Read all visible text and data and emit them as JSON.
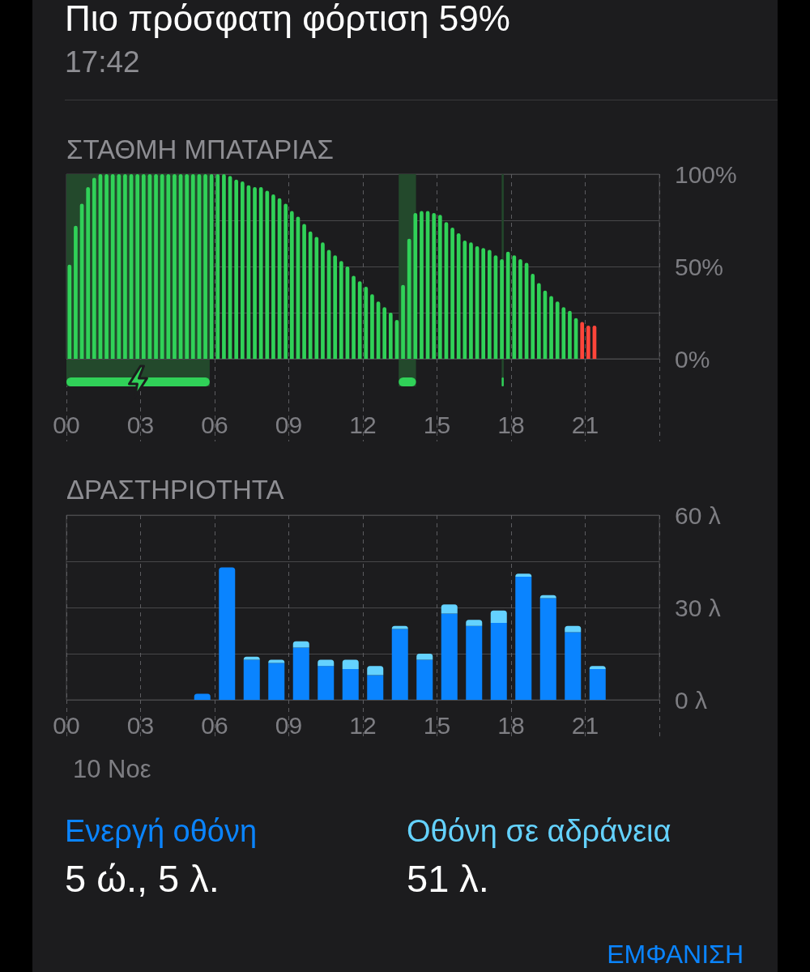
{
  "chart_data": [
    {
      "type": "bar",
      "title": "ΣΤΑΘΜΗ ΜΠΑΤΑΡΙΑΣ",
      "annotations": [
        "Πιο πρόσφατη φόρτιση 59%",
        "17:42"
      ],
      "x": [
        0.125,
        0.375,
        0.625,
        0.875,
        1.125,
        1.375,
        1.625,
        1.875,
        2.125,
        2.375,
        2.625,
        2.875,
        3.125,
        3.375,
        3.625,
        3.875,
        4.125,
        4.375,
        4.625,
        4.875,
        5.125,
        5.375,
        5.625,
        5.875,
        6.125,
        6.375,
        6.625,
        6.875,
        7.125,
        7.375,
        7.625,
        7.875,
        8.125,
        8.375,
        8.625,
        8.875,
        9.125,
        9.375,
        9.625,
        9.875,
        10.125,
        10.375,
        10.625,
        10.875,
        11.125,
        11.375,
        11.625,
        11.875,
        12.125,
        12.375,
        12.625,
        12.875,
        13.125,
        13.375,
        13.625,
        13.875,
        14.125,
        14.375,
        14.625,
        14.875,
        15.125,
        15.375,
        15.625,
        15.875,
        16.125,
        16.375,
        16.625,
        16.875,
        17.125,
        17.375,
        17.625,
        17.875,
        18.125,
        18.375,
        18.625,
        18.875,
        19.125,
        19.375,
        19.625,
        19.875,
        20.125,
        20.375,
        20.625,
        20.875,
        21.125,
        21.375
      ],
      "values": [
        51,
        72,
        84,
        93,
        98,
        100,
        100,
        100,
        100,
        100,
        100,
        100,
        100,
        100,
        100,
        100,
        100,
        100,
        100,
        100,
        100,
        100,
        100,
        100,
        100,
        100,
        99,
        97,
        96,
        94,
        93,
        93,
        91,
        89,
        87,
        84,
        80,
        77,
        73,
        69,
        66,
        63,
        59,
        56,
        53,
        50,
        45,
        42,
        39,
        35,
        31,
        28,
        25,
        21,
        40,
        65,
        79,
        80,
        80,
        79,
        78,
        74,
        71,
        68,
        64,
        63,
        61,
        60,
        59,
        56,
        54,
        58,
        56,
        54,
        52,
        46,
        41,
        37,
        34,
        31,
        28,
        26,
        22,
        20,
        18,
        18
      ],
      "colors": [
        "#30d158",
        "#30d158",
        "#30d158",
        "#30d158",
        "#30d158",
        "#30d158",
        "#30d158",
        "#30d158",
        "#30d158",
        "#30d158",
        "#30d158",
        "#30d158",
        "#30d158",
        "#30d158",
        "#30d158",
        "#30d158",
        "#30d158",
        "#30d158",
        "#30d158",
        "#30d158",
        "#30d158",
        "#30d158",
        "#30d158",
        "#30d158",
        "#30d158",
        "#30d158",
        "#30d158",
        "#30d158",
        "#30d158",
        "#30d158",
        "#30d158",
        "#30d158",
        "#30d158",
        "#30d158",
        "#30d158",
        "#30d158",
        "#30d158",
        "#30d158",
        "#30d158",
        "#30d158",
        "#30d158",
        "#30d158",
        "#30d158",
        "#30d158",
        "#30d158",
        "#30d158",
        "#30d158",
        "#30d158",
        "#30d158",
        "#30d158",
        "#30d158",
        "#30d158",
        "#30d158",
        "#30d158",
        "#30d158",
        "#30d158",
        "#30d158",
        "#30d158",
        "#30d158",
        "#30d158",
        "#30d158",
        "#30d158",
        "#30d158",
        "#30d158",
        "#30d158",
        "#30d158",
        "#30d158",
        "#30d158",
        "#30d158",
        "#30d158",
        "#30d158",
        "#30d158",
        "#30d158",
        "#30d158",
        "#30d158",
        "#30d158",
        "#30d158",
        "#30d158",
        "#30d158",
        "#30d158",
        "#30d158",
        "#30d158",
        "#30d158",
        "#ff453a",
        "#ff453a",
        "#ff453a"
      ],
      "xlim": [
        0,
        24
      ],
      "xticks": [
        {
          "value": 0,
          "label": "00"
        },
        {
          "value": 3,
          "label": "03"
        },
        {
          "value": 6,
          "label": "06"
        },
        {
          "value": 9,
          "label": "09"
        },
        {
          "value": 12,
          "label": "12"
        },
        {
          "value": 15,
          "label": "15"
        },
        {
          "value": 18,
          "label": "18"
        },
        {
          "value": 21,
          "label": "21"
        },
        {
          "value": 24,
          "label": null
        }
      ],
      "ylim": [
        0,
        100
      ],
      "yticks": [
        {
          "value": 0,
          "label": "0%"
        },
        {
          "value": 25,
          "label": null
        },
        {
          "value": 50,
          "label": "50%"
        },
        {
          "value": 75,
          "label": null
        },
        {
          "value": 100,
          "label": "100%"
        }
      ],
      "grid": true,
      "bands": [
        {
          "axis": "x",
          "from": 0,
          "to": 5.8,
          "color": "#23492c"
        },
        {
          "axis": "x",
          "from": 13.45,
          "to": 14.15,
          "color": "#23492c"
        },
        {
          "axis": "x",
          "from": 17.62,
          "to": 17.7,
          "color": "#23492c"
        }
      ]
    },
    {
      "type": "bar",
      "title": "ΔΡΑΣΤΗΡΙΟΤΗΤΑ",
      "xlabel": "10 Νοε",
      "stacked": true,
      "x": [
        5.5,
        6.5,
        7.5,
        8.5,
        9.5,
        10.5,
        11.5,
        12.5,
        13.5,
        14.5,
        15.5,
        16.5,
        17.5,
        18.5,
        19.5,
        20.5,
        21.5
      ],
      "series": [
        {
          "name": "Ενεργή οθόνη",
          "color": "#0a84ff",
          "values": [
            2,
            43,
            13,
            12,
            17,
            11,
            10,
            8,
            23,
            13,
            28,
            24,
            25,
            40,
            33,
            22,
            10
          ]
        },
        {
          "name": "Οθόνη σε αδράνεια",
          "color": "#64d2ff",
          "values": [
            null,
            null,
            1,
            1,
            2,
            2,
            3,
            3,
            1,
            2,
            3,
            2,
            4,
            1,
            1,
            2,
            1
          ]
        }
      ],
      "xlim": [
        0,
        24
      ],
      "xticks": [
        {
          "value": 0,
          "label": "00"
        },
        {
          "value": 3,
          "label": "03"
        },
        {
          "value": 6,
          "label": "06"
        },
        {
          "value": 9,
          "label": "09"
        },
        {
          "value": 12,
          "label": "12"
        },
        {
          "value": 15,
          "label": "15"
        },
        {
          "value": 18,
          "label": "18"
        },
        {
          "value": 21,
          "label": "21"
        },
        {
          "value": 24,
          "label": null
        }
      ],
      "ylim": [
        0,
        60
      ],
      "yticks": [
        {
          "value": 0,
          "label": "0 λ"
        },
        {
          "value": 15,
          "label": null
        },
        {
          "value": 30,
          "label": "30 λ"
        },
        {
          "value": 45,
          "label": null
        },
        {
          "value": 60,
          "label": "60 λ"
        }
      ],
      "grid": true,
      "legend": "bottom",
      "annotations": [
        "5 ώ., 5 λ.",
        "51 λ.",
        "ΕΜΦΑΝΙΣΗ"
      ]
    }
  ]
}
